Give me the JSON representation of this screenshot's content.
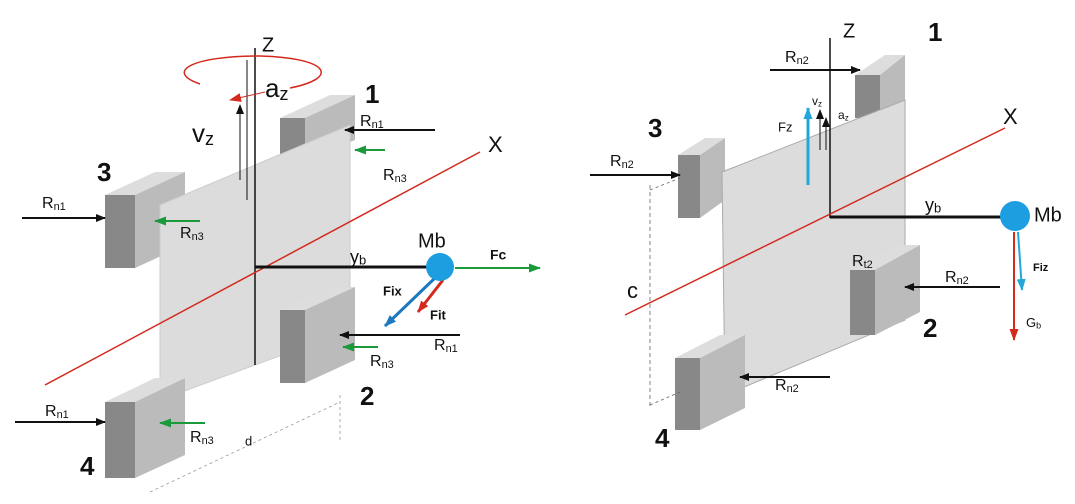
{
  "left": {
    "labels": [
      {
        "text": "Z"
      },
      {
        "base": "a",
        "sub": "z"
      },
      {
        "base": "v",
        "sub": "z"
      },
      {
        "text": "1"
      },
      {
        "text": "3"
      },
      {
        "text": "2"
      },
      {
        "text": "4"
      },
      {
        "text": "X"
      },
      {
        "base": "y",
        "sub": "b"
      },
      {
        "text": "Mb"
      },
      {
        "text": "Fc"
      },
      {
        "text": "Fix"
      },
      {
        "text": "Fit"
      },
      {
        "base": "R",
        "sub": "n1"
      },
      {
        "base": "R",
        "sub": "n1"
      },
      {
        "base": "R",
        "sub": "n1"
      },
      {
        "base": "R",
        "sub": "n1"
      },
      {
        "base": "R",
        "sub": "n3"
      },
      {
        "base": "R",
        "sub": "n3"
      },
      {
        "base": "R",
        "sub": "n3"
      },
      {
        "base": "R",
        "sub": "n3"
      },
      {
        "text": "d"
      }
    ]
  },
  "right": {
    "labels": [
      {
        "text": "Z"
      },
      {
        "text": "1"
      },
      {
        "base": "R",
        "sub": "n2"
      },
      {
        "text": "Fz"
      },
      {
        "base": "v",
        "sub": "z"
      },
      {
        "base": "a",
        "sub": "z"
      },
      {
        "text": "3"
      },
      {
        "text": "X"
      },
      {
        "base": "R",
        "sub": "n2"
      },
      {
        "base": "y",
        "sub": "b"
      },
      {
        "text": "Mb"
      },
      {
        "text": "Fiz"
      },
      {
        "base": "R",
        "sub": "n2"
      },
      {
        "base": "R",
        "sub": "t2"
      },
      {
        "text": "2"
      },
      {
        "base": "G",
        "sub": "b"
      },
      {
        "text": "c"
      },
      {
        "base": "R",
        "sub": "n2"
      },
      {
        "text": "4"
      }
    ]
  }
}
